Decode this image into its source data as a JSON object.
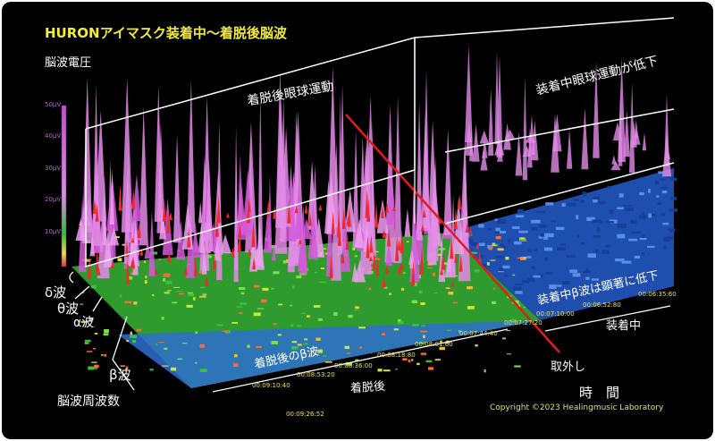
{
  "chart_data": {
    "type": "3d-spectrogram",
    "title": "HURONアイマスク装着中〜着脱後脳波",
    "ylabel": "脳波電圧",
    "y_ticks": [
      "50μV",
      "40μV",
      "30μV",
      "20μV",
      "10μV"
    ],
    "depth_label": "脳波周波数",
    "x_label": "時　間",
    "bands": [
      "δ波",
      "θ波",
      "α波",
      "β波"
    ],
    "annotations": {
      "eye_after": "着脱後眼球運動",
      "eye_wearing": "装着中眼球運動が低下",
      "beta_after": "着脱後のβ波",
      "beta_wearing": "装着中β波は顕著に低下",
      "after_section": "着脱後",
      "wearing_section": "装着中",
      "removal": "取外し"
    },
    "timestamps": [
      "00:06:35:60",
      "00:06:52:80",
      "00:07:10:00",
      "00:07:27:20",
      "00:07:44:40",
      "00:08:01:60",
      "00:08:18:80",
      "00:08:36:00",
      "00:08:53:20",
      "00:09:10:40",
      "00:09:26:52"
    ]
  },
  "copyright": "Copyright ©2023 Healingmusic Laboratory"
}
